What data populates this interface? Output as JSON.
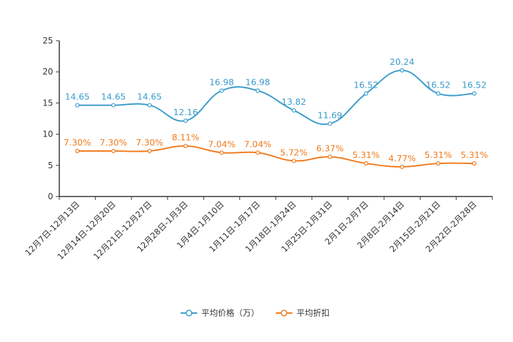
{
  "chart_data": {
    "type": "line",
    "title": "",
    "xlabel": "",
    "ylabel": "",
    "ylim": [
      0,
      25
    ],
    "yticks": [
      0,
      5,
      10,
      15,
      20,
      25
    ],
    "grid": false,
    "legend_position": "bottom-center",
    "categories": [
      "12月7日-12月13日",
      "12月14日-12月20日",
      "12月21日-12月27日",
      "12月28日-1月3日",
      "1月4日-1月10日",
      "1月11日-1月17日",
      "1月18日-1月24日",
      "1月25日-1月31日",
      "2月1日-2月7日",
      "2月8日-2月14日",
      "2月15日-2月21日",
      "2月22日-2月28日"
    ],
    "series": [
      {
        "name": "平均价格（万）",
        "color": "#3a9ccb",
        "values": [
          14.65,
          14.65,
          14.65,
          12.16,
          16.98,
          16.98,
          13.82,
          11.69,
          16.52,
          20.24,
          16.52,
          16.52
        ],
        "labels": [
          "14.65",
          "14.65",
          "14.65",
          "12.16",
          "16.98",
          "16.98",
          "13.82",
          "11.69",
          "16.52",
          "20.24",
          "16.52",
          "16.52"
        ]
      },
      {
        "name": "平均折扣",
        "color": "#f07a1d",
        "values": [
          7.3,
          7.3,
          7.3,
          8.11,
          7.04,
          7.04,
          5.72,
          6.37,
          5.31,
          4.77,
          5.31,
          5.31
        ],
        "labels": [
          "7.30%",
          "7.30%",
          "7.30%",
          "8.11%",
          "7.04%",
          "7.04%",
          "5.72%",
          "6.37%",
          "5.31%",
          "4.77%",
          "5.31%",
          "5.31%"
        ]
      }
    ]
  }
}
